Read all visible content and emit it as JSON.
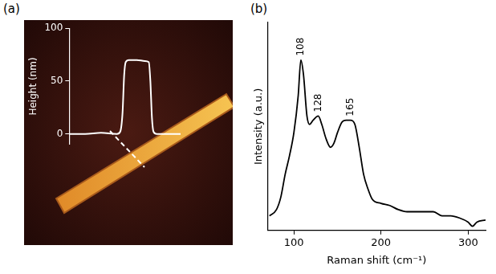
{
  "chart_data": [
    {
      "type": "line",
      "title": "(a)",
      "ylabel": "Height (nm)",
      "x": [
        0,
        20,
        40,
        60,
        64,
        67,
        69,
        71,
        75,
        85,
        95,
        100,
        102,
        104,
        106,
        110,
        125,
        140
      ],
      "values": [
        0,
        0,
        1,
        0,
        2,
        20,
        55,
        68,
        70,
        70,
        69,
        68,
        50,
        15,
        2,
        0,
        0,
        0
      ],
      "color": "#ffffff",
      "xlim": [
        0,
        140
      ],
      "ylim": [
        -10,
        100
      ],
      "yticks": [
        0,
        50,
        100
      ],
      "grid": false,
      "tick_labels": "y"
    },
    {
      "type": "line",
      "title": "(b)",
      "xlabel": "Raman shift (cm⁻¹)",
      "ylabel": "Intensity (a.u.)",
      "x": [
        72,
        80,
        85,
        90,
        95,
        100,
        105,
        108,
        111,
        115,
        118,
        122,
        128,
        132,
        137,
        142,
        146,
        150,
        155,
        160,
        165,
        170,
        175,
        180,
        185,
        190,
        200,
        210,
        220,
        230,
        240,
        250,
        260,
        270,
        280,
        290,
        300,
        305,
        310,
        320
      ],
      "values": [
        7,
        10,
        16,
        27,
        36,
        47,
        65,
        82,
        75,
        55,
        51,
        53,
        55,
        51,
        44,
        40,
        42,
        47,
        52,
        53,
        53,
        51,
        40,
        27,
        20,
        15,
        13,
        12,
        10,
        9,
        9,
        9,
        9,
        7,
        7,
        6,
        4,
        2,
        4,
        5
      ],
      "color": "#000000",
      "xlim": [
        70,
        320
      ],
      "xticks": [
        100,
        200,
        300
      ],
      "ylim": [
        0,
        100
      ],
      "grid": false,
      "tick_labels": "x",
      "annotations": [
        {
          "text": "108",
          "x": 108,
          "y": 82
        },
        {
          "text": "128",
          "x": 128,
          "y": 55
        },
        {
          "text": "165",
          "x": 165,
          "y": 53
        }
      ]
    }
  ]
}
